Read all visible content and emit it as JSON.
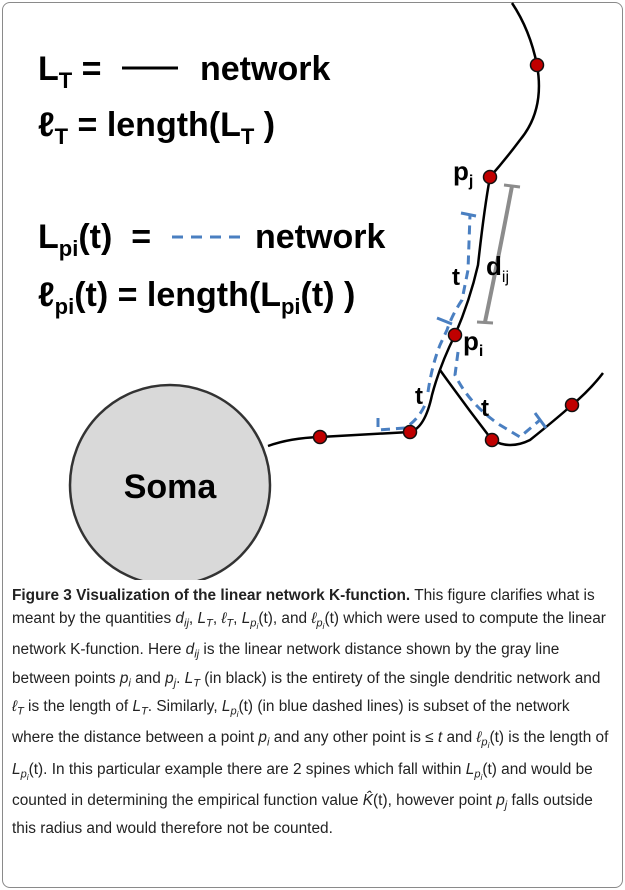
{
  "figure": {
    "equations": [
      {
        "parts": [
          "L",
          "T",
          " = ",
          "network"
        ]
      },
      {
        "parts": [
          "ℓ",
          "T",
          " = length(L",
          "T",
          " )"
        ]
      },
      {
        "parts": [
          "L",
          "pi",
          "(t)  = ",
          "network"
        ]
      },
      {
        "parts": [
          "ℓ",
          "pi",
          "(t) = length(L",
          "pi",
          "(t) )"
        ]
      }
    ],
    "labels": {
      "pj": [
        "p",
        "j"
      ],
      "dij": [
        "d",
        "ij"
      ],
      "pi": [
        "p",
        "i"
      ],
      "t_upper": "t",
      "t_left": "t",
      "t_right": "t",
      "soma": "Soma"
    }
  },
  "caption": {
    "title": "Figure 3 Visualization of the linear network K-function.",
    "body": [
      [
        " This figure clarifies what is meant by the quantities ",
        "r"
      ],
      [
        "d",
        "i"
      ],
      [
        "ij",
        "sub"
      ],
      [
        ", ",
        "r"
      ],
      [
        "L",
        "i"
      ],
      [
        "T",
        "sub"
      ],
      [
        ", ",
        "r"
      ],
      [
        "ℓ",
        "i"
      ],
      [
        "T",
        "sub"
      ],
      [
        ", ",
        "r"
      ],
      [
        "L",
        "i"
      ],
      [
        "p",
        "sub"
      ],
      [
        "i",
        "sub2"
      ],
      [
        "(t), and ",
        "r"
      ],
      [
        "ℓ",
        "i"
      ],
      [
        "p",
        "sub"
      ],
      [
        "i",
        "sub2"
      ],
      [
        "(t) which were used to compute the linear network K-function. Here ",
        "r"
      ],
      [
        "d",
        "i"
      ],
      [
        "ij",
        "sub"
      ],
      [
        " is the linear network distance shown by the gray line between points ",
        "r"
      ],
      [
        "p",
        "i"
      ],
      [
        "i",
        "sub"
      ],
      [
        " and ",
        "r"
      ],
      [
        "p",
        "i"
      ],
      [
        "j",
        "sub"
      ],
      [
        ". ",
        "r"
      ],
      [
        "L",
        "i"
      ],
      [
        "T",
        "sub"
      ],
      [
        " (in black) is the entirety of the single dendritic network and ",
        "r"
      ],
      [
        "ℓ",
        "i"
      ],
      [
        "T",
        "sub"
      ],
      [
        " is the length of ",
        "r"
      ],
      [
        "L",
        "i"
      ],
      [
        "T",
        "sub"
      ],
      [
        ". Similarly, ",
        "r"
      ],
      [
        "L",
        "i"
      ],
      [
        "p",
        "sub"
      ],
      [
        "i",
        "sub2"
      ],
      [
        "(t) (in blue dashed lines) is subset of the network where the distance between a point ",
        "r"
      ],
      [
        "p",
        "i"
      ],
      [
        "i",
        "sub"
      ],
      [
        " and any other point is ≤ ",
        "r"
      ],
      [
        "t",
        "i"
      ],
      [
        " and ",
        "r"
      ],
      [
        "ℓ",
        "i"
      ],
      [
        "p",
        "sub"
      ],
      [
        "i",
        "sub2"
      ],
      [
        "(t) is the length of ",
        "r"
      ],
      [
        "L",
        "i"
      ],
      [
        "p",
        "sub"
      ],
      [
        "i",
        "sub2"
      ],
      [
        "(t). In this particular example there are 2 spines which fall within ",
        "r"
      ],
      [
        "L",
        "i"
      ],
      [
        "p",
        "sub"
      ],
      [
        "i",
        "sub2"
      ],
      [
        "(t) and would be counted in determining the empirical function value ",
        "r"
      ],
      [
        "K̂",
        "i"
      ],
      [
        "(t), however point ",
        "r"
      ],
      [
        "p",
        "i"
      ],
      [
        "j",
        "sub"
      ],
      [
        " falls outside this radius and would therefore not be counted.",
        "r"
      ]
    ]
  }
}
